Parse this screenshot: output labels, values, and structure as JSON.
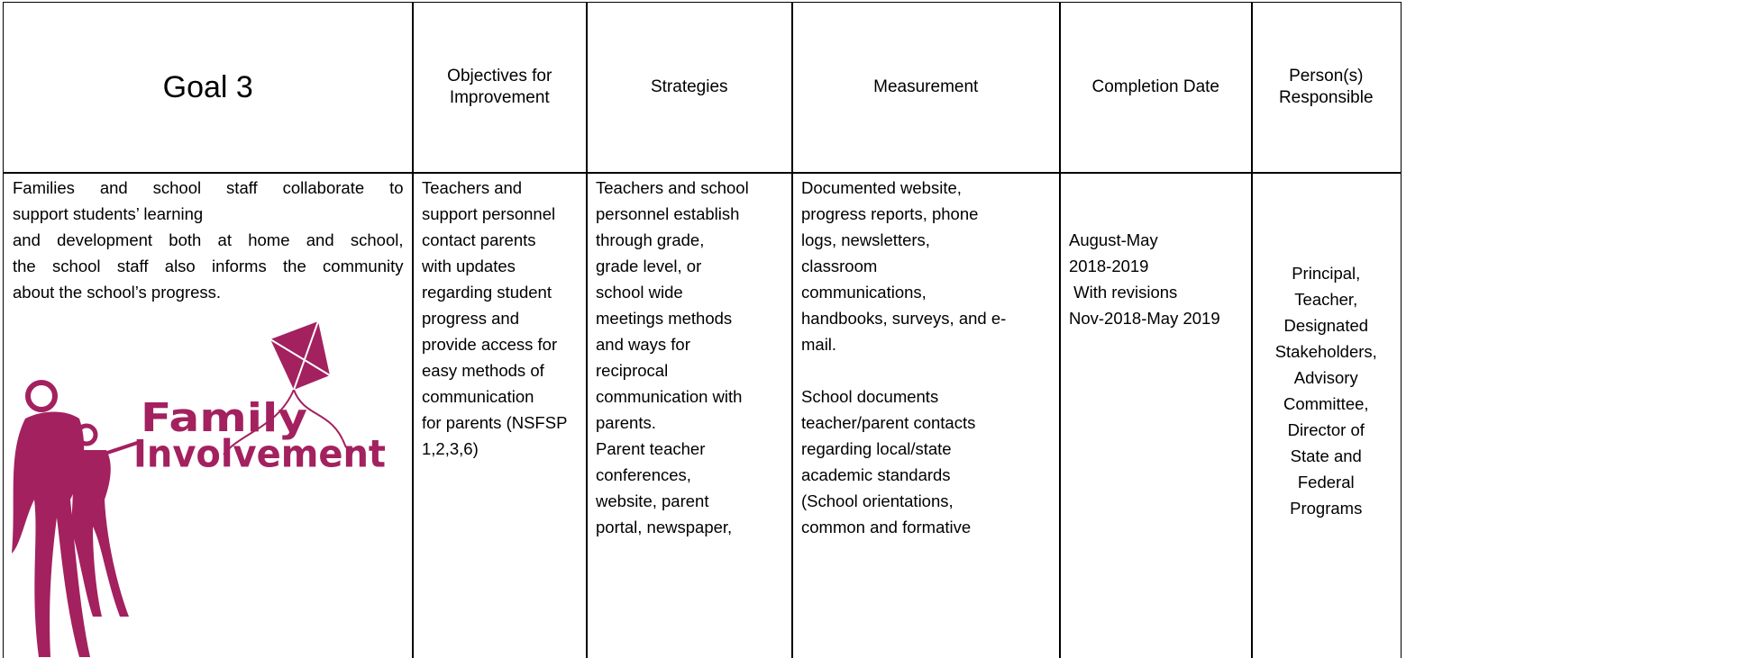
{
  "header": {
    "cells": [
      [
        "Goal 3"
      ],
      [
        "Objectives for",
        "Improvement"
      ],
      [
        "Strategies"
      ],
      [
        "Measurement"
      ],
      [
        "Completion Date"
      ],
      [
        "Person(s)",
        "Responsible"
      ]
    ]
  },
  "body": {
    "cells": [
      [
        [
          "Families and school staff collaborate to",
          "support students’ learning",
          "and development both at home and school,",
          "the school staff also informs the community",
          "about the school’s progress."
        ]
      ],
      [
        [
          "Teachers and",
          "support personnel",
          "contact parents",
          "with updates",
          "regarding student",
          "progress and",
          "provide access for",
          "easy methods of",
          "communication",
          "for parents (NSFSP",
          "1,2,3,6)"
        ]
      ],
      [
        [
          "Teachers and school",
          "personnel establish",
          "through grade,",
          "grade level, or",
          "school wide",
          "meetings methods",
          "and ways for",
          "reciprocal",
          "communication with",
          "parents.",
          "Parent teacher",
          "conferences,",
          "website, parent",
          "portal, newspaper,"
        ]
      ],
      [
        [
          "Documented website,",
          "progress reports, phone",
          "logs, newsletters,",
          "classroom",
          "communications,",
          "handbooks, surveys, and e-",
          "mail."
        ],
        [
          "School documents",
          "teacher/parent contacts",
          "regarding local/state",
          "academic standards",
          "(School orientations,",
          "common and formative"
        ]
      ],
      [
        [
          "August-May",
          "2018-2019",
          " With revisions",
          "Nov-2018-May 2019"
        ]
      ],
      [
        [
          "Principal,",
          "Teacher,",
          "Designated",
          "Stakeholders,",
          "Advisory",
          "Committee,",
          "Director of",
          "State and",
          "Federal",
          "Programs"
        ]
      ]
    ]
  },
  "logo": {
    "line1": "Family",
    "line2": "Involvement"
  }
}
